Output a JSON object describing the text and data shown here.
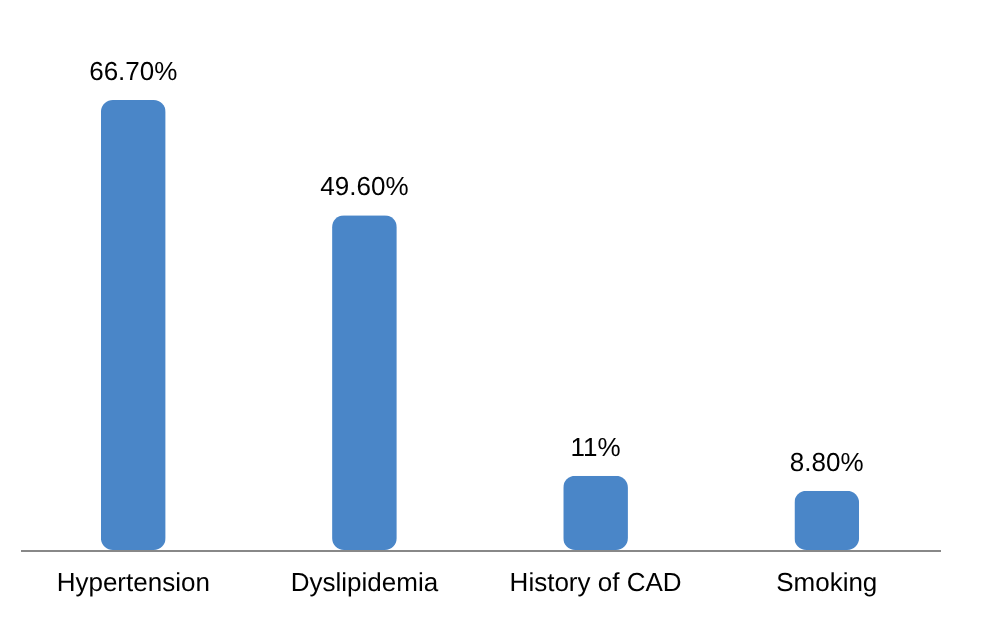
{
  "chart_data": {
    "type": "bar",
    "categories": [
      "Hypertension",
      "Dyslipidemia",
      "History of CAD",
      "Smoking"
    ],
    "values": [
      66.7,
      49.6,
      11,
      8.8
    ],
    "value_labels": [
      "66.70%",
      "49.60%",
      "11%",
      "8.80%"
    ],
    "color": "#4a86c8",
    "grid": false
  }
}
